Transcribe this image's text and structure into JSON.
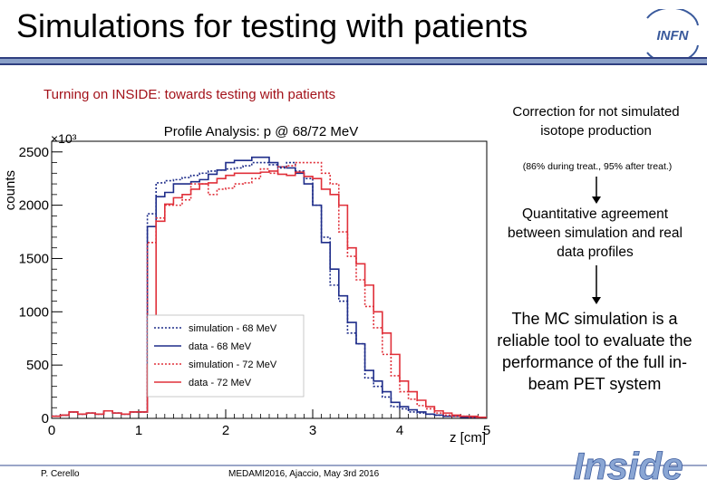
{
  "slide": {
    "title": "Simulations for testing with patients",
    "subtitle": "Turning on INSIDE: towards testing with patients",
    "note1": "Correction for not simulated isotope production",
    "note1_small": "(86% during treat., 95% after treat.)",
    "note2": "Quantitative agreement between simulation and real data profiles",
    "note3": "The MC simulation is a reliable tool to evaluate the performance of the full in-beam PET system",
    "footer_author": "P. Cerello",
    "footer_event": "MEDAMI2016, Ajaccio, May 3rd 2016",
    "logo_text": "INFN",
    "brand_text": "Inside",
    "colors": {
      "title_bar": "#8aa0c8",
      "accent_red": "#a3121a",
      "brand_blue": "#3a5a9c"
    }
  },
  "chart_data": {
    "type": "line",
    "title": "Profile Analysis: p @ 68/72 MeV",
    "xlabel": "z [cm]",
    "ylabel": "counts",
    "y_multiplier": "×10³",
    "xlim": [
      0,
      5
    ],
    "ylim": [
      0,
      2600
    ],
    "xticks": [
      "0",
      "1",
      "2",
      "3",
      "4",
      "5"
    ],
    "yticks": [
      "0",
      "500",
      "1000",
      "1500",
      "2000",
      "2500"
    ],
    "grid": false,
    "legend_position": "center-left",
    "x": [
      0.0,
      0.1,
      0.2,
      0.3,
      0.4,
      0.5,
      0.6,
      0.7,
      0.8,
      0.9,
      1.0,
      1.1,
      1.2,
      1.3,
      1.4,
      1.5,
      1.6,
      1.7,
      1.8,
      1.9,
      2.0,
      2.1,
      2.2,
      2.3,
      2.4,
      2.5,
      2.6,
      2.7,
      2.8,
      2.9,
      3.0,
      3.1,
      3.2,
      3.3,
      3.4,
      3.5,
      3.6,
      3.7,
      3.8,
      3.9,
      4.0,
      4.1,
      4.2,
      4.3,
      4.4,
      4.5,
      4.6,
      4.7,
      4.8,
      4.9
    ],
    "series": [
      {
        "name": "simulation - 68 MeV",
        "color": "#1f2d8a",
        "style": "dotted",
        "values": [
          20,
          30,
          60,
          40,
          50,
          40,
          70,
          50,
          40,
          60,
          60,
          1920,
          2210,
          2230,
          2240,
          2260,
          2280,
          2300,
          2320,
          2330,
          2340,
          2350,
          2370,
          2400,
          2400,
          2380,
          2350,
          2400,
          2320,
          2250,
          2000,
          1700,
          1250,
          1100,
          800,
          700,
          380,
          300,
          200,
          110,
          90,
          60,
          50,
          40,
          30,
          20,
          20,
          20,
          10,
          10
        ]
      },
      {
        "name": "data - 68 MeV",
        "color": "#1f2d8a",
        "style": "solid",
        "values": [
          20,
          30,
          60,
          40,
          50,
          40,
          70,
          50,
          40,
          60,
          60,
          1800,
          2080,
          2120,
          2200,
          2200,
          2220,
          2240,
          2290,
          2330,
          2400,
          2420,
          2420,
          2450,
          2450,
          2400,
          2360,
          2350,
          2300,
          2200,
          2000,
          1650,
          1400,
          1150,
          900,
          700,
          450,
          350,
          250,
          150,
          110,
          80,
          60,
          40,
          30,
          20,
          20,
          10,
          10,
          10
        ]
      },
      {
        "name": "simulation - 72 MeV",
        "color": "#e0303a",
        "style": "dotted",
        "values": [
          20,
          30,
          60,
          40,
          50,
          40,
          70,
          50,
          40,
          60,
          60,
          1650,
          1880,
          2000,
          2000,
          2050,
          2200,
          2200,
          2100,
          2150,
          2160,
          2200,
          2210,
          2250,
          2340,
          2300,
          2360,
          2370,
          2400,
          2400,
          2400,
          2300,
          2200,
          1750,
          1520,
          1300,
          1050,
          850,
          600,
          400,
          250,
          180,
          120,
          90,
          50,
          30,
          20,
          20,
          10,
          10
        ]
      },
      {
        "name": "data - 72 MeV",
        "color": "#e0303a",
        "style": "solid",
        "values": [
          20,
          30,
          60,
          40,
          50,
          40,
          70,
          50,
          40,
          60,
          60,
          500,
          1850,
          2010,
          2070,
          2100,
          2150,
          2200,
          2210,
          2250,
          2280,
          2300,
          2300,
          2300,
          2310,
          2320,
          2290,
          2280,
          2310,
          2270,
          2250,
          2150,
          2100,
          2000,
          1600,
          1450,
          1250,
          1000,
          800,
          600,
          350,
          250,
          170,
          110,
          70,
          50,
          30,
          20,
          20,
          10
        ]
      }
    ]
  }
}
